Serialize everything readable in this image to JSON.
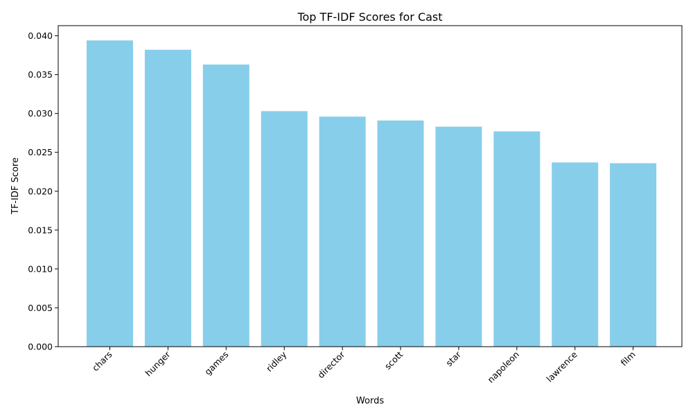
{
  "chart_data": {
    "type": "bar",
    "title": "Top TF-IDF Scores for Cast",
    "xlabel": "Words",
    "ylabel": "TF-IDF Score",
    "categories": [
      "chars",
      "hunger",
      "games",
      "ridley",
      "director",
      "scott",
      "star",
      "napoleon",
      "lawrence",
      "film"
    ],
    "values": [
      0.0394,
      0.0382,
      0.0363,
      0.0303,
      0.0296,
      0.0291,
      0.0283,
      0.0277,
      0.0237,
      0.0236
    ],
    "ylim": [
      0,
      0.0413
    ],
    "yticks": [
      0.0,
      0.005,
      0.01,
      0.015,
      0.02,
      0.025,
      0.03,
      0.035,
      0.04
    ],
    "ytick_labels": [
      "0.000",
      "0.005",
      "0.010",
      "0.015",
      "0.020",
      "0.025",
      "0.030",
      "0.035",
      "0.040"
    ],
    "bar_color": "#87ceeb",
    "grid": false,
    "legend": "none"
  }
}
